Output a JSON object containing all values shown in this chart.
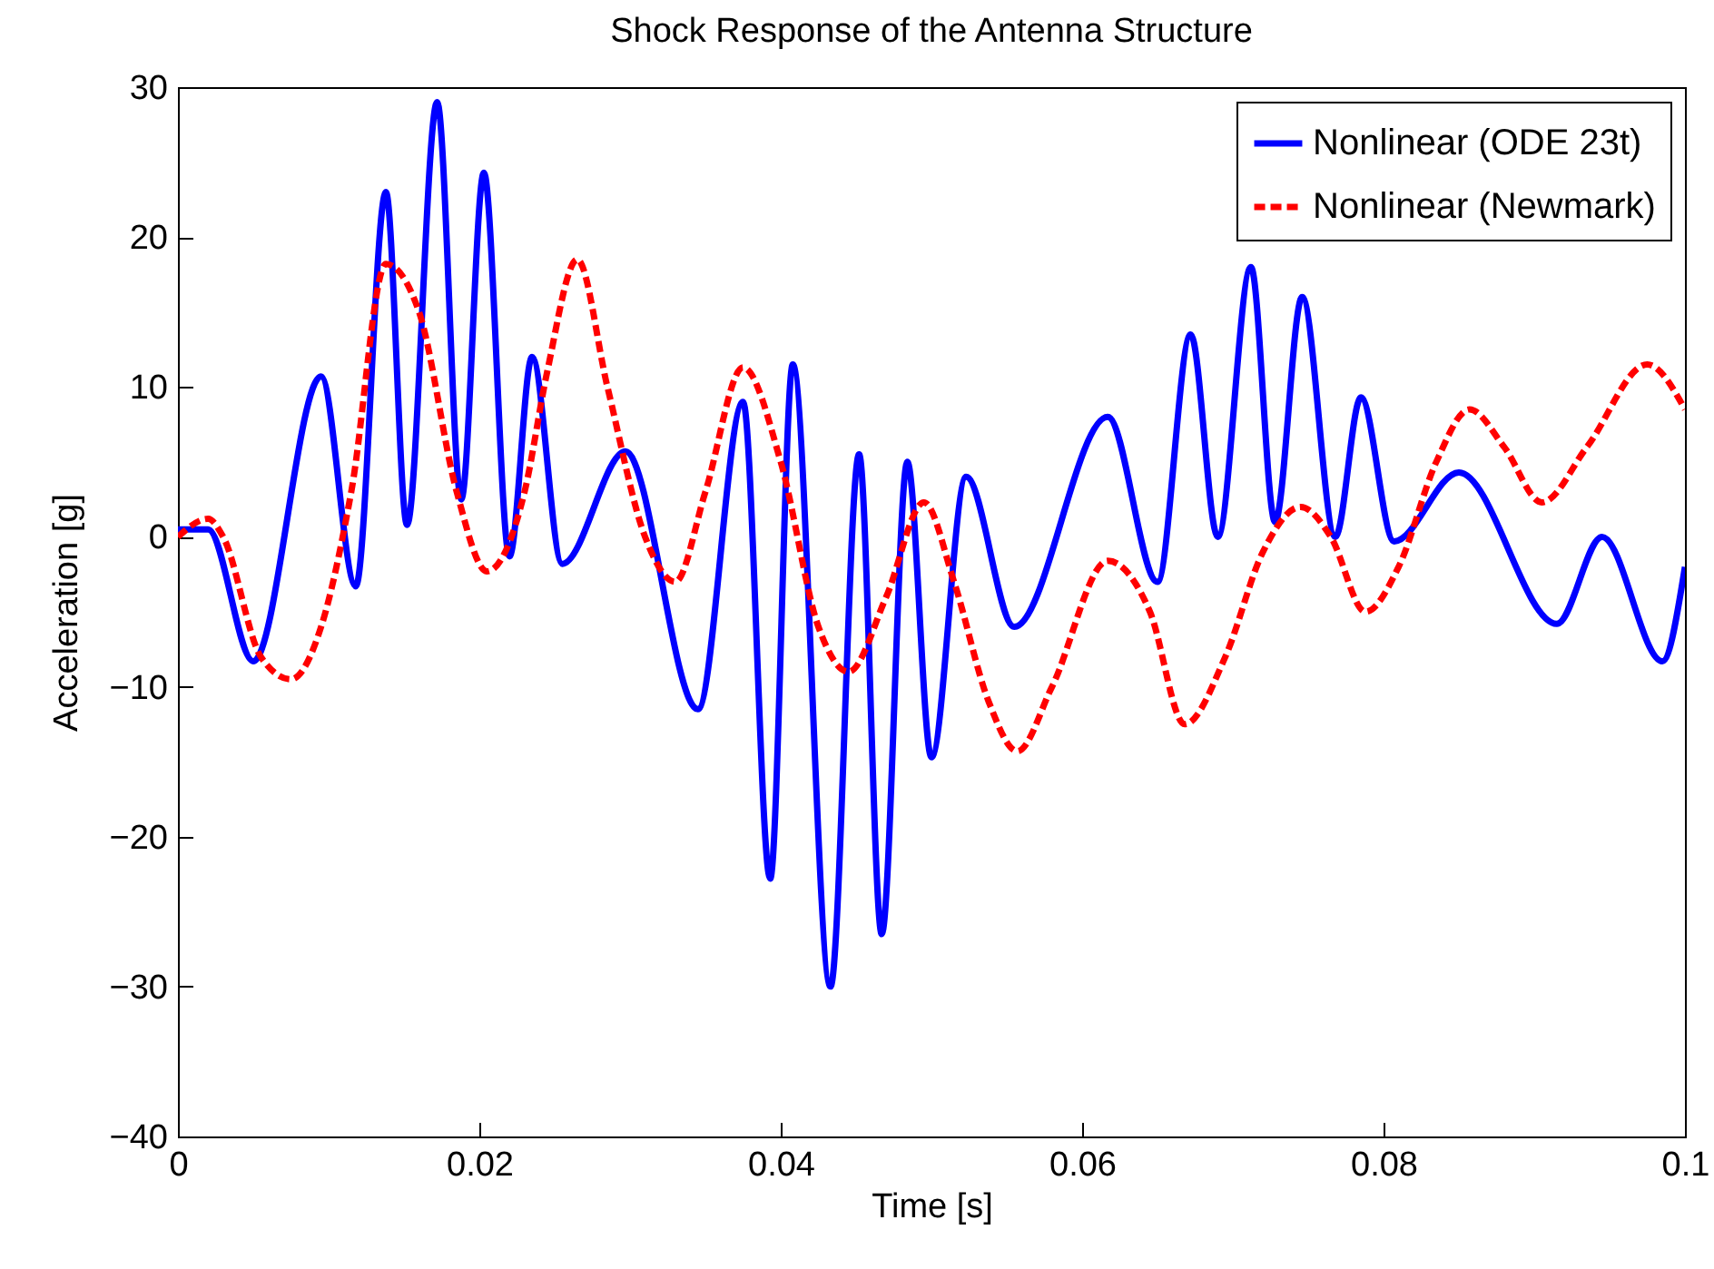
{
  "chart_data": {
    "type": "line",
    "title": "Shock Response of the Antenna Structure",
    "xlabel": "Time [s]",
    "ylabel": "Acceleration [g]",
    "xlim": [
      0,
      0.1
    ],
    "xticks": [
      0,
      0.02,
      0.04,
      0.06,
      0.08,
      0.1
    ],
    "ylim": [
      -40,
      30
    ],
    "yticks": [
      -40,
      -30,
      -20,
      -10,
      0,
      10,
      20,
      30
    ],
    "grid": false,
    "legend": "top right",
    "marker": "none",
    "series": [
      {
        "name": "Nonlinear (ODE 23t)",
        "color": "#0000ff",
        "line_style": "solid",
        "x": [
          0,
          0.002,
          0.005,
          0.0095,
          0.0118,
          0.0138,
          0.0152,
          0.0172,
          0.0188,
          0.0203,
          0.022,
          0.0235,
          0.0255,
          0.0297,
          0.0345,
          0.0375,
          0.0393,
          0.0408,
          0.0433,
          0.0452,
          0.0467,
          0.0484,
          0.05,
          0.0523,
          0.0555,
          0.0617,
          0.065,
          0.0672,
          0.069,
          0.0712,
          0.0728,
          0.0746,
          0.0768,
          0.0785,
          0.0807,
          0.085,
          0.0915,
          0.0945,
          0.0985,
          0.1
        ],
        "values": [
          0.5,
          0.5,
          -8.3,
          10.7,
          -3.3,
          23,
          0.8,
          29,
          2.5,
          24.3,
          -1.3,
          12,
          -1.8,
          5.7,
          -11.5,
          9,
          -22.8,
          11.5,
          -30,
          5.5,
          -26.5,
          5,
          -14.7,
          4,
          -6,
          8,
          -3,
          13.5,
          0,
          18,
          1,
          16,
          0,
          9.3,
          -0.3,
          4.3,
          -5.8,
          0,
          -8.3,
          -2
        ]
      },
      {
        "name": "Nonlinear (Newmark)",
        "color": "#ff0000",
        "line_style": "dashed",
        "x": [
          0,
          0.002,
          0.003,
          0.0055,
          0.0075,
          0.0095,
          0.0115,
          0.0138,
          0.016,
          0.0185,
          0.0205,
          0.023,
          0.0245,
          0.0265,
          0.0285,
          0.031,
          0.033,
          0.035,
          0.0375,
          0.04,
          0.0425,
          0.0445,
          0.047,
          0.0495,
          0.0515,
          0.0538,
          0.0557,
          0.058,
          0.0617,
          0.0645,
          0.0668,
          0.0695,
          0.072,
          0.0745,
          0.0765,
          0.0788,
          0.081,
          0.0835,
          0.0857,
          0.088,
          0.0905,
          0.0935,
          0.0975,
          0.1
        ],
        "values": [
          0,
          1.2,
          0,
          -8,
          -9.5,
          -6,
          3,
          18.2,
          15,
          3,
          -2.3,
          3,
          11,
          18.5,
          10,
          0,
          -3,
          3,
          11.3,
          5,
          -6,
          -9,
          -4,
          2.3,
          -3,
          -11,
          -14.3,
          -10,
          -1.6,
          -5,
          -12.5,
          -8,
          -1,
          2,
          0,
          -5,
          -2,
          5,
          8.5,
          6,
          2.3,
          6,
          11.5,
          8.5
        ]
      }
    ]
  }
}
